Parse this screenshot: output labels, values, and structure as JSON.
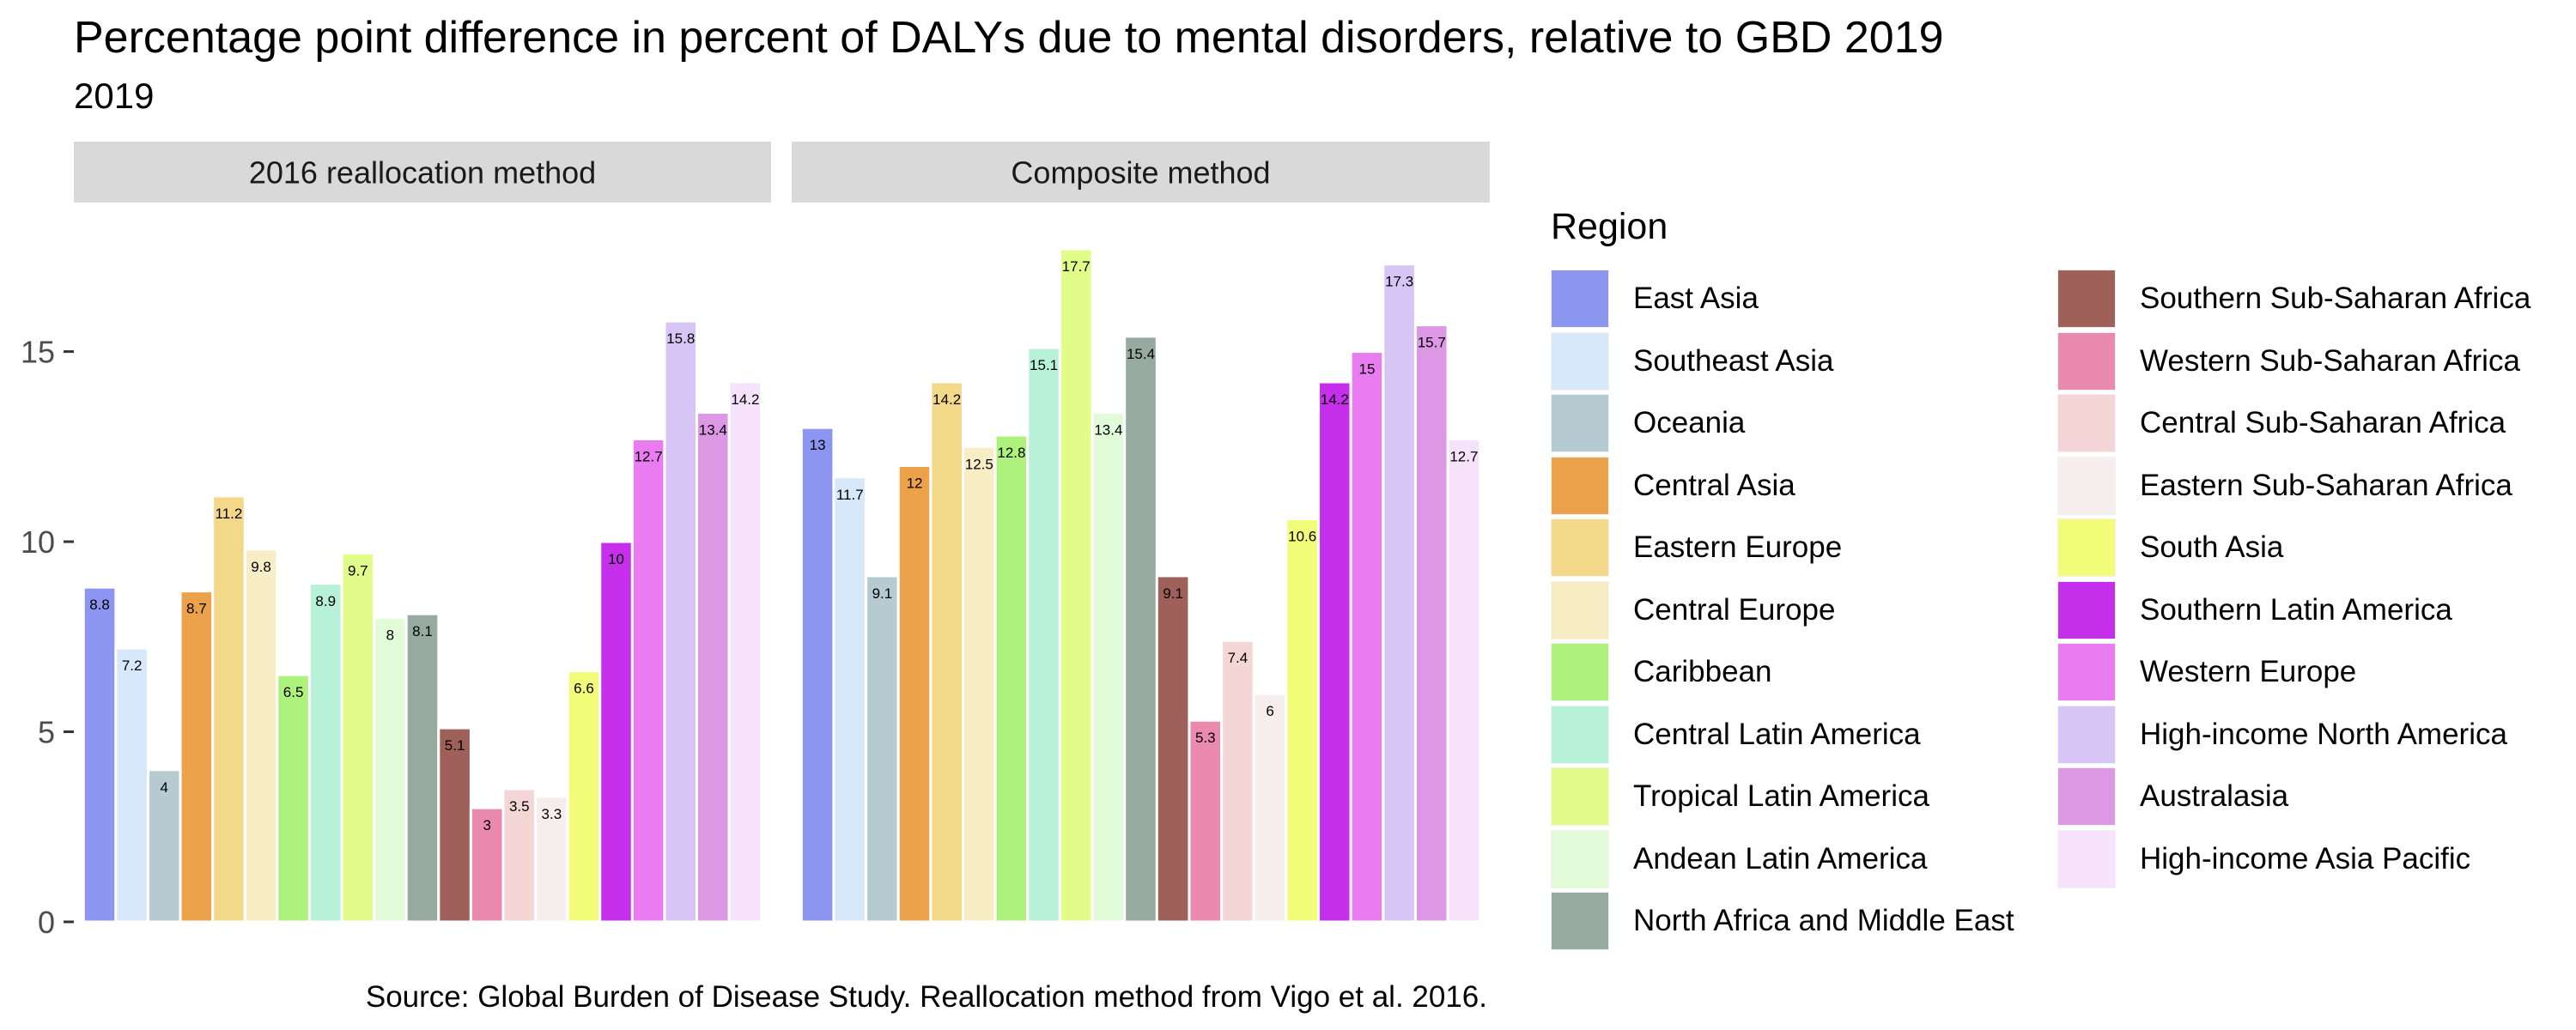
{
  "chart_data": {
    "type": "bar",
    "title": "Percentage point difference in percent of DALYs due to mental disorders, relative to GBD 2019",
    "subtitle": "2019",
    "caption": "Source: Global Burden of Disease Study. Reallocation method from Vigo et al. 2016.",
    "ylim": [
      0,
      17.7
    ],
    "y_ticks": [
      0,
      5,
      10,
      15
    ],
    "grid": false,
    "legend": {
      "title": "Region",
      "placement": "right",
      "columns": 2
    },
    "categories": [
      "East Asia",
      "Southeast Asia",
      "Oceania",
      "Central Asia",
      "Eastern Europe",
      "Central Europe",
      "Caribbean",
      "Central Latin America",
      "Tropical Latin America",
      "Andean Latin America",
      "North Africa and Middle East",
      "Southern Sub-Saharan Africa",
      "Western Sub-Saharan Africa",
      "Central Sub-Saharan Africa",
      "Eastern Sub-Saharan Africa",
      "South Asia",
      "Southern Latin America",
      "Western Europe",
      "High-income North America",
      "Australasia",
      "High-income Asia Pacific"
    ],
    "colors": [
      "#8c96f0",
      "#d6e8fa",
      "#b6cad2",
      "#eba24a",
      "#f4d88a",
      "#f9edc6",
      "#aef27e",
      "#b6f1d8",
      "#e2fc8a",
      "#e2fbd8",
      "#97aaa0",
      "#a0605a",
      "#ea8aac",
      "#f4d6d6",
      "#f6eeee",
      "#f3fc78",
      "#c630ec",
      "#e87cf0",
      "#d7c5f6",
      "#dc98e4",
      "#f6e2fa"
    ],
    "facets": [
      {
        "label": "2016 reallocation method",
        "values": [
          8.8,
          7.2,
          4,
          8.7,
          11.2,
          9.8,
          6.5,
          8.9,
          9.7,
          8,
          8.1,
          5.1,
          3,
          3.5,
          3.3,
          6.6,
          10,
          12.7,
          15.8,
          13.4,
          14.2
        ]
      },
      {
        "label": "Composite method",
        "values": [
          13,
          11.7,
          9.1,
          12,
          14.2,
          12.5,
          12.8,
          15.1,
          17.7,
          13.4,
          15.4,
          9.1,
          5.3,
          7.4,
          6,
          10.6,
          14.2,
          15,
          17.3,
          15.7,
          12.7
        ]
      }
    ]
  }
}
